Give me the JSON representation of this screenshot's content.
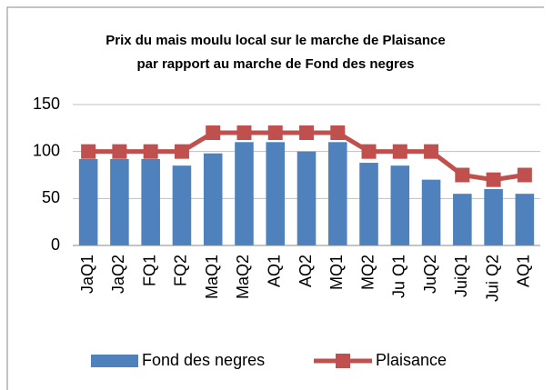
{
  "chart_data": {
    "type": "bar_line",
    "title": [
      "Prix du mais moulu local sur le marche de Plaisance",
      "par rapport au marche de Fond des negres"
    ],
    "categories": [
      "JaQ1",
      "JaQ2",
      "FQ1",
      "FQ2",
      "MaQ1",
      "MaQ2",
      "AQ1",
      "AQ2",
      "MQ1",
      "MQ2",
      "Ju Q1",
      "JuQ2",
      "JuiQ1",
      "Jui Q2",
      "AQ1"
    ],
    "series": [
      {
        "name": "Fond des negres",
        "type": "bar",
        "color": "#4f81bd",
        "values": [
          92,
          92,
          92,
          85,
          98,
          110,
          110,
          100,
          110,
          88,
          85,
          70,
          55,
          60,
          55
        ]
      },
      {
        "name": "Plaisance",
        "type": "line",
        "color": "#c0504d",
        "values": [
          100,
          100,
          100,
          100,
          120,
          120,
          120,
          120,
          120,
          100,
          100,
          100,
          75,
          70,
          75
        ]
      }
    ],
    "ylim": [
      0,
      150
    ],
    "yticks": [
      0,
      50,
      100,
      150
    ],
    "grid": true,
    "legend": "bottom"
  }
}
